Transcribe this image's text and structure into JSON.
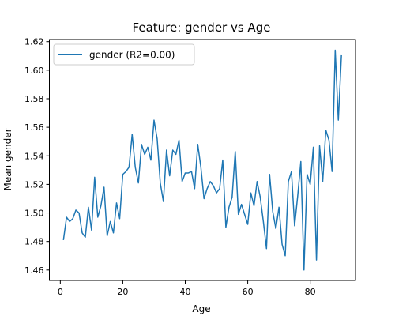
{
  "chart_data": {
    "type": "line",
    "title": "Feature: gender vs Age",
    "xlabel": "Age",
    "ylabel": "Mean gender",
    "xlim": [
      -3.5,
      94.5
    ],
    "ylim": [
      1.4527,
      1.6215
    ],
    "xticks": [
      0,
      20,
      40,
      60,
      80
    ],
    "xtick_labels": [
      "0",
      "20",
      "40",
      "60",
      "80"
    ],
    "yticks": [
      1.46,
      1.48,
      1.5,
      1.52,
      1.54,
      1.56,
      1.58,
      1.6,
      1.62
    ],
    "ytick_labels": [
      "1.46",
      "1.48",
      "1.50",
      "1.52",
      "1.54",
      "1.56",
      "1.58",
      "1.60",
      "1.62"
    ],
    "grid": false,
    "legend_position": "upper-left",
    "series": [
      {
        "name": "gender (R2=0.00)",
        "color": "#1f77b4",
        "x": [
          1,
          2,
          3,
          4,
          5,
          6,
          7,
          8,
          9,
          10,
          11,
          12,
          13,
          14,
          15,
          16,
          17,
          18,
          19,
          20,
          21,
          22,
          23,
          24,
          25,
          26,
          27,
          28,
          29,
          30,
          31,
          32,
          33,
          34,
          35,
          36,
          37,
          38,
          39,
          40,
          41,
          42,
          43,
          44,
          45,
          46,
          47,
          48,
          49,
          50,
          51,
          52,
          53,
          54,
          55,
          56,
          57,
          58,
          59,
          60,
          61,
          62,
          63,
          64,
          65,
          66,
          67,
          68,
          69,
          70,
          71,
          72,
          73,
          74,
          75,
          76,
          77,
          78,
          79,
          80,
          81,
          82,
          83,
          84,
          85,
          86,
          87,
          88,
          89,
          90
        ],
        "y": [
          1.481,
          1.497,
          1.494,
          1.496,
          1.502,
          1.5,
          1.486,
          1.483,
          1.504,
          1.488,
          1.525,
          1.497,
          1.505,
          1.518,
          1.484,
          1.494,
          1.486,
          1.507,
          1.496,
          1.527,
          1.529,
          1.532,
          1.555,
          1.532,
          1.521,
          1.548,
          1.541,
          1.546,
          1.537,
          1.565,
          1.552,
          1.521,
          1.508,
          1.544,
          1.526,
          1.544,
          1.541,
          1.551,
          1.522,
          1.528,
          1.528,
          1.529,
          1.517,
          1.548,
          1.532,
          1.51,
          1.517,
          1.522,
          1.519,
          1.514,
          1.517,
          1.537,
          1.49,
          1.504,
          1.511,
          1.543,
          1.499,
          1.506,
          1.499,
          1.492,
          1.514,
          1.505,
          1.522,
          1.511,
          1.494,
          1.475,
          1.527,
          1.501,
          1.489,
          1.504,
          1.478,
          1.47,
          1.522,
          1.529,
          1.491,
          1.512,
          1.536,
          1.46,
          1.527,
          1.52,
          1.546,
          1.467,
          1.547,
          1.522,
          1.558,
          1.551,
          1.529,
          1.614,
          1.565,
          1.611
        ]
      }
    ]
  }
}
